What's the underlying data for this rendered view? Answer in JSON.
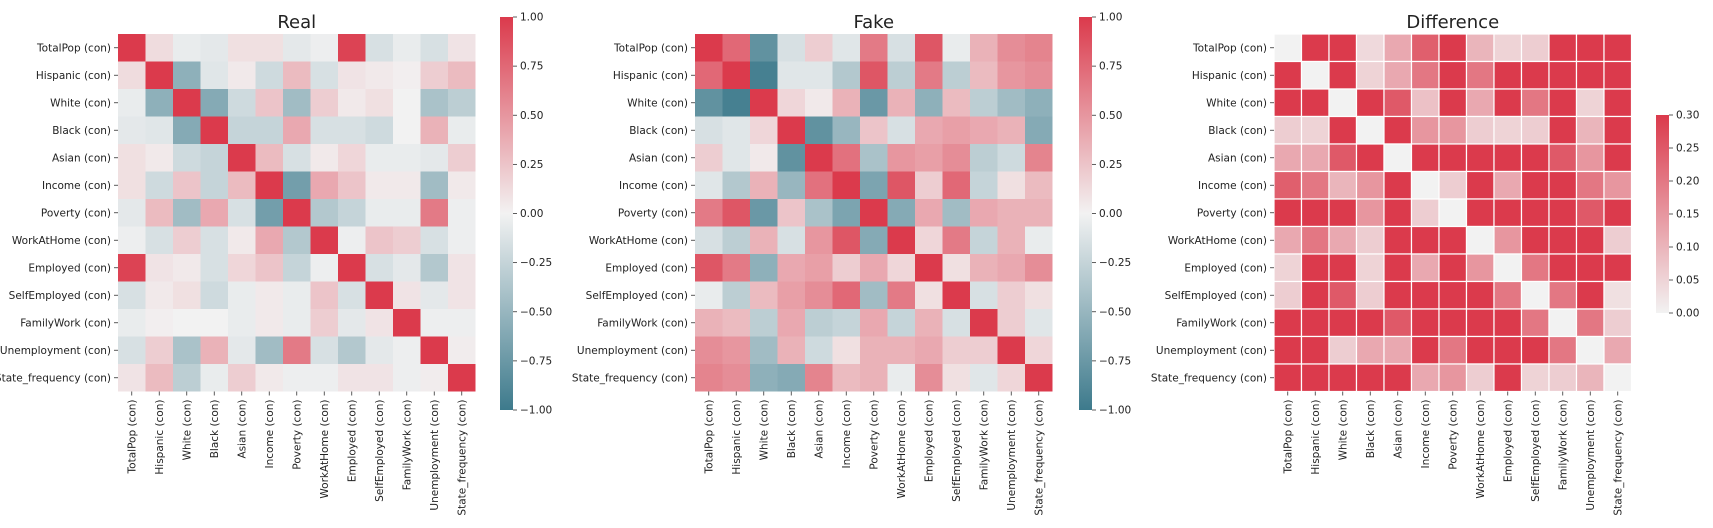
{
  "chart_data": [
    {
      "type": "heatmap",
      "title": "Real",
      "colorbar": {
        "ticks": [
          "1.00",
          "0.75",
          "0.50",
          "0.25",
          "0.00",
          "−0.25",
          "−0.50",
          "−0.75",
          "−1.00"
        ],
        "range": [
          -1,
          1
        ],
        "colors": [
          "#3d7a8c",
          "#f2f2f2",
          "#db3a4c"
        ]
      },
      "labels": [
        "TotalPop (con)",
        "Hispanic (con)",
        "White (con)",
        "Black (con)",
        "Asian (con)",
        "Income (con)",
        "Poverty (con)",
        "WorkAtHome (con)",
        "Employed (con)",
        "SelfEmployed (con)",
        "FamilyWork (con)",
        "Unemployment (con)",
        "State_frequency (con)"
      ],
      "row_labels": [
        "TotalPop (con)",
        "Hispanic (con)",
        "White (con)",
        "Black (con)",
        "Asian (con)",
        "Income (con)",
        "Poverty (con)",
        "WorkAtHome (con)",
        "Employed (con)",
        "SelfEmployed (con)",
        "FamilyWork (con)",
        "Unemployment (con)",
        "State_frequency (con)"
      ],
      "values": [
        [
          1.0,
          0.12,
          -0.05,
          -0.08,
          0.1,
          0.1,
          -0.08,
          -0.03,
          0.95,
          -0.15,
          -0.05,
          -0.15,
          0.08
        ],
        [
          0.12,
          1.0,
          -0.55,
          -0.1,
          0.05,
          -0.2,
          0.3,
          -0.15,
          0.08,
          0.05,
          0.02,
          0.2,
          0.3
        ],
        [
          -0.05,
          -0.55,
          1.0,
          -0.6,
          -0.2,
          0.25,
          -0.45,
          0.2,
          0.05,
          0.1,
          0.0,
          -0.4,
          -0.3
        ],
        [
          -0.08,
          -0.1,
          -0.6,
          1.0,
          -0.25,
          -0.25,
          0.4,
          -0.15,
          -0.15,
          -0.2,
          0.0,
          0.35,
          -0.05
        ],
        [
          0.1,
          0.05,
          -0.2,
          -0.25,
          1.0,
          0.3,
          -0.15,
          0.05,
          0.15,
          -0.05,
          -0.05,
          -0.08,
          0.2
        ],
        [
          0.1,
          -0.2,
          0.25,
          -0.25,
          0.3,
          1.0,
          -0.7,
          0.4,
          0.25,
          0.05,
          0.05,
          -0.45,
          0.05
        ],
        [
          -0.08,
          0.3,
          -0.45,
          0.4,
          -0.15,
          -0.7,
          1.0,
          -0.35,
          -0.25,
          -0.05,
          -0.05,
          0.65,
          -0.03
        ],
        [
          -0.03,
          -0.15,
          0.2,
          -0.15,
          0.05,
          0.4,
          -0.35,
          1.0,
          -0.03,
          0.25,
          0.2,
          -0.15,
          -0.03
        ],
        [
          0.95,
          0.08,
          0.05,
          -0.15,
          0.15,
          0.25,
          -0.25,
          -0.03,
          1.0,
          -0.15,
          -0.08,
          -0.35,
          0.08
        ],
        [
          -0.15,
          0.05,
          0.1,
          -0.2,
          -0.05,
          0.05,
          -0.05,
          0.25,
          -0.15,
          1.0,
          0.08,
          -0.08,
          0.08
        ],
        [
          -0.05,
          0.02,
          0.0,
          0.0,
          -0.05,
          0.05,
          -0.05,
          0.2,
          -0.08,
          0.08,
          1.0,
          -0.03,
          -0.03
        ],
        [
          -0.15,
          0.2,
          -0.4,
          0.35,
          -0.08,
          -0.45,
          0.65,
          -0.15,
          -0.35,
          -0.08,
          -0.03,
          1.0,
          0.03
        ],
        [
          0.08,
          0.3,
          -0.3,
          -0.05,
          0.2,
          0.05,
          -0.03,
          -0.03,
          0.08,
          0.08,
          -0.03,
          0.03,
          1.0
        ]
      ]
    },
    {
      "type": "heatmap",
      "title": "Fake",
      "colorbar": {
        "ticks": [
          "1.00",
          "0.75",
          "0.50",
          "0.25",
          "0.00",
          "−0.25",
          "−0.50",
          "−0.75",
          "−1.00"
        ],
        "range": [
          -1,
          1
        ],
        "colors": [
          "#3d7a8c",
          "#f2f2f2",
          "#db3a4c"
        ]
      },
      "labels": [
        "TotalPop (con)",
        "Hispanic (con)",
        "White (con)",
        "Black (con)",
        "Asian (con)",
        "Income (con)",
        "Poverty (con)",
        "WorkAtHome (con)",
        "Employed (con)",
        "SelfEmployed (con)",
        "FamilyWork (con)",
        "Unemployment (con)",
        "State_frequency (con)"
      ],
      "row_labels": [
        "TotalPop (con)",
        "Hispanic (con)",
        "White (con)",
        "Black (con)",
        "Asian (con)",
        "Income (con)",
        "Poverty (con)",
        "WorkAtHome (con)",
        "Employed (con)",
        "SelfEmployed (con)",
        "FamilyWork (con)",
        "Unemployment (con)",
        "State_frequency (con)"
      ],
      "values": [
        [
          1.0,
          0.75,
          -0.8,
          -0.15,
          0.2,
          -0.1,
          0.65,
          -0.15,
          0.85,
          -0.05,
          0.35,
          0.55,
          0.6
        ],
        [
          0.75,
          1.0,
          -0.95,
          -0.1,
          -0.1,
          -0.35,
          0.85,
          -0.3,
          0.65,
          -0.3,
          0.3,
          0.5,
          0.55
        ],
        [
          -0.8,
          -0.95,
          1.0,
          0.15,
          0.05,
          0.35,
          -0.75,
          0.35,
          -0.55,
          0.3,
          -0.3,
          -0.45,
          -0.55
        ],
        [
          -0.15,
          -0.1,
          0.15,
          1.0,
          -0.8,
          -0.5,
          0.25,
          -0.15,
          0.4,
          0.45,
          0.4,
          0.35,
          -0.6
        ],
        [
          0.2,
          -0.1,
          0.05,
          -0.8,
          1.0,
          0.7,
          -0.4,
          0.5,
          0.45,
          0.55,
          -0.3,
          -0.2,
          0.6
        ],
        [
          -0.1,
          -0.35,
          0.35,
          -0.5,
          0.7,
          1.0,
          -0.65,
          0.85,
          0.2,
          0.75,
          -0.25,
          0.1,
          0.3
        ],
        [
          0.65,
          0.85,
          -0.75,
          0.25,
          -0.4,
          -0.65,
          1.0,
          -0.6,
          0.4,
          -0.45,
          0.4,
          0.35,
          0.35
        ],
        [
          -0.15,
          -0.3,
          0.35,
          -0.15,
          0.5,
          0.85,
          -0.6,
          1.0,
          0.15,
          0.65,
          -0.25,
          0.35,
          -0.05
        ],
        [
          0.85,
          0.65,
          -0.55,
          0.4,
          0.45,
          0.2,
          0.4,
          0.15,
          1.0,
          0.1,
          0.35,
          0.4,
          0.55
        ],
        [
          -0.05,
          -0.3,
          0.3,
          0.45,
          0.55,
          0.75,
          -0.45,
          0.65,
          0.1,
          1.0,
          -0.15,
          0.2,
          0.1
        ],
        [
          0.35,
          0.3,
          -0.3,
          0.4,
          -0.3,
          -0.25,
          0.4,
          -0.25,
          0.35,
          -0.15,
          1.0,
          0.2,
          -0.1
        ],
        [
          0.55,
          0.5,
          -0.45,
          0.35,
          -0.2,
          0.1,
          0.35,
          0.35,
          0.4,
          0.2,
          0.2,
          1.0,
          0.15
        ],
        [
          0.6,
          0.55,
          -0.55,
          -0.6,
          0.6,
          0.3,
          0.35,
          -0.05,
          0.55,
          0.1,
          -0.1,
          0.15,
          1.0
        ]
      ]
    },
    {
      "type": "heatmap",
      "title": "Difference",
      "colorbar": {
        "ticks": [
          "0.30",
          "0.25",
          "0.20",
          "0.15",
          "0.10",
          "0.05",
          "0.00"
        ],
        "range": [
          0,
          0.3
        ],
        "colors": [
          "#f2f2f2",
          "#db3a4c"
        ]
      },
      "labels": [
        "TotalPop (con)",
        "Hispanic (con)",
        "White (con)",
        "Black (con)",
        "Asian (con)",
        "Income (con)",
        "Poverty (con)",
        "WorkAtHome (con)",
        "Employed (con)",
        "SelfEmployed (con)",
        "FamilyWork (con)",
        "Unemployment (con)",
        "State_frequency (con)"
      ],
      "row_labels": [
        "TotalPop (con)",
        "Hispanic (con)",
        "White (con)",
        "Black (con)",
        "Asian (con)",
        "Income (con)",
        "Poverty (con)",
        "WorkAtHome (con)",
        "Employed (con)",
        "SelfEmployed (con)",
        "FamilyWork (con)",
        "Unemployment (con)",
        "State_frequency (con)"
      ],
      "values": [
        [
          0.0,
          0.3,
          0.3,
          0.04,
          0.12,
          0.24,
          0.3,
          0.1,
          0.05,
          0.06,
          0.3,
          0.3,
          0.3
        ],
        [
          0.3,
          0.0,
          0.3,
          0.05,
          0.12,
          0.2,
          0.3,
          0.2,
          0.3,
          0.3,
          0.3,
          0.3,
          0.3
        ],
        [
          0.3,
          0.3,
          0.0,
          0.3,
          0.25,
          0.08,
          0.3,
          0.12,
          0.3,
          0.2,
          0.3,
          0.05,
          0.3
        ],
        [
          0.06,
          0.05,
          0.3,
          0.0,
          0.3,
          0.15,
          0.15,
          0.06,
          0.05,
          0.06,
          0.3,
          0.1,
          0.3
        ],
        [
          0.12,
          0.12,
          0.25,
          0.3,
          0.0,
          0.3,
          0.3,
          0.3,
          0.3,
          0.3,
          0.25,
          0.15,
          0.3
        ],
        [
          0.24,
          0.2,
          0.1,
          0.15,
          0.3,
          0.0,
          0.06,
          0.3,
          0.12,
          0.3,
          0.3,
          0.2,
          0.15
        ],
        [
          0.3,
          0.3,
          0.3,
          0.15,
          0.3,
          0.06,
          0.0,
          0.3,
          0.3,
          0.3,
          0.3,
          0.25,
          0.3
        ],
        [
          0.12,
          0.2,
          0.12,
          0.06,
          0.3,
          0.3,
          0.3,
          0.0,
          0.15,
          0.3,
          0.3,
          0.3,
          0.06
        ],
        [
          0.05,
          0.3,
          0.3,
          0.05,
          0.3,
          0.12,
          0.3,
          0.15,
          0.0,
          0.2,
          0.3,
          0.3,
          0.3
        ],
        [
          0.06,
          0.3,
          0.25,
          0.06,
          0.3,
          0.3,
          0.3,
          0.3,
          0.2,
          0.0,
          0.2,
          0.3,
          0.03
        ],
        [
          0.3,
          0.3,
          0.3,
          0.3,
          0.25,
          0.3,
          0.3,
          0.3,
          0.3,
          0.2,
          0.0,
          0.2,
          0.06
        ],
        [
          0.3,
          0.3,
          0.06,
          0.12,
          0.12,
          0.3,
          0.2,
          0.3,
          0.3,
          0.3,
          0.2,
          0.0,
          0.12
        ],
        [
          0.3,
          0.3,
          0.3,
          0.3,
          0.3,
          0.12,
          0.15,
          0.06,
          0.3,
          0.05,
          0.06,
          0.1,
          0.0
        ]
      ]
    }
  ]
}
